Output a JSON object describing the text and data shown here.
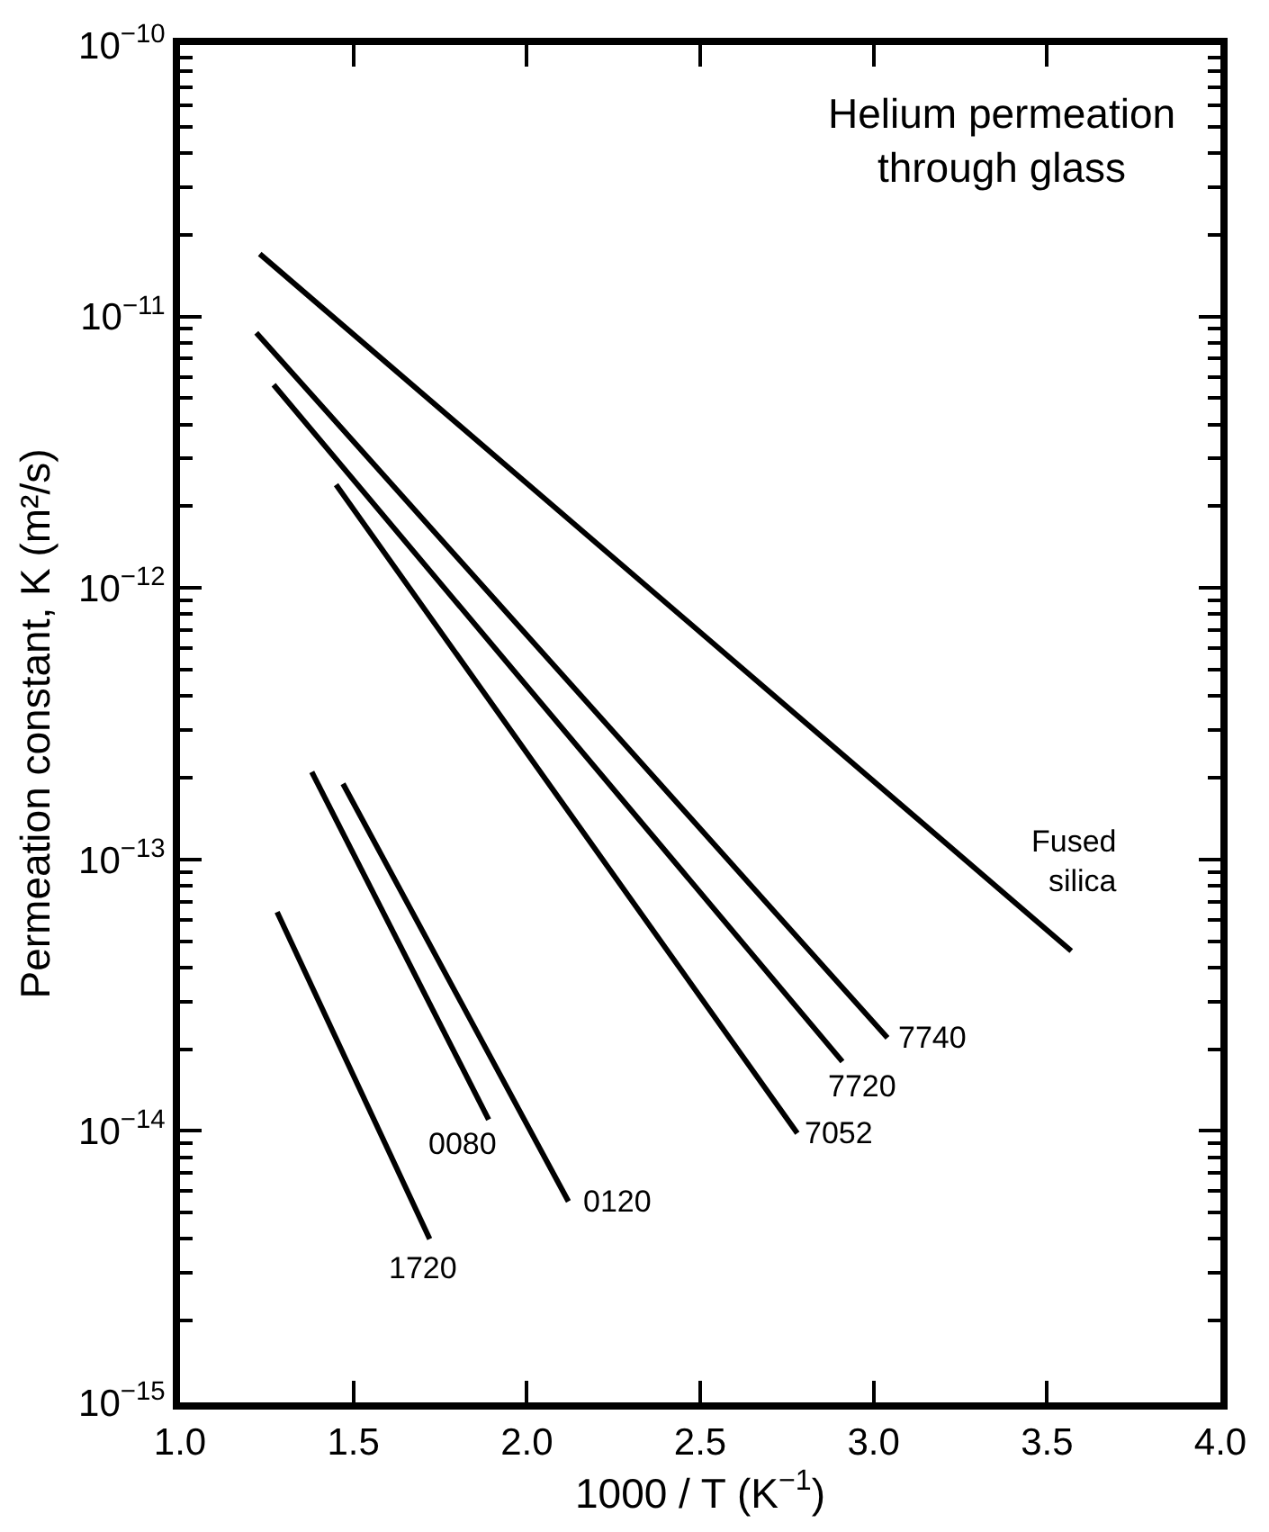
{
  "chart_data": {
    "type": "line",
    "title": "Helium permeation through glass",
    "xlabel": "1000 / T (K$^{−1}$)",
    "ylabel": "Permeation constant, K (m²/s)",
    "series": [
      {
        "name": "Fused silica",
        "color": "#000000",
        "x": [
          1.23,
          3.57
        ],
        "values": [
          1.7e-11,
          4.6e-14
        ]
      },
      {
        "name": "7740",
        "color": "#000000",
        "x": [
          1.22,
          3.04
        ],
        "values": [
          8.7e-12,
          2.2e-14
        ]
      },
      {
        "name": "7720",
        "color": "#000000",
        "x": [
          1.27,
          2.91
        ],
        "values": [
          5.6e-12,
          1.8e-14
        ]
      },
      {
        "name": "7052",
        "color": "#000000",
        "x": [
          1.45,
          2.78
        ],
        "values": [
          2.4e-12,
          9.8e-15
        ]
      },
      {
        "name": "0080",
        "color": "#000000",
        "x": [
          1.38,
          1.89
        ],
        "values": [
          2.1e-13,
          1.1e-14
        ]
      },
      {
        "name": "0120",
        "color": "#000000",
        "x": [
          1.47,
          2.12
        ],
        "values": [
          1.9e-13,
          5.5e-15
        ]
      },
      {
        "name": "1720",
        "color": "#000000",
        "x": [
          1.28,
          1.72
        ],
        "values": [
          6.4e-14,
          4e-15
        ]
      }
    ],
    "log": "y",
    "xlim": [
      1.0,
      4.0
    ],
    "ylim": [
      1e-15,
      1e-10
    ],
    "xticks": [
      {
        "value": 1.0,
        "label": "1.0"
      },
      {
        "value": 1.5,
        "label": "1.5"
      },
      {
        "value": 2.0,
        "label": "2.0"
      },
      {
        "value": 2.5,
        "label": "2.5"
      },
      {
        "value": 3.0,
        "label": "3.0"
      },
      {
        "value": 3.5,
        "label": "3.5"
      },
      {
        "value": 4.0,
        "label": "4.0"
      }
    ],
    "yticks": [
      {
        "value": 1e-15,
        "label": "10$^{−15}$"
      },
      {
        "value": 1e-14,
        "label": "10$^{−14}$"
      },
      {
        "value": 1e-13,
        "label": "10$^{−13}$"
      },
      {
        "value": 1e-12,
        "label": "10$^{−12}$"
      },
      {
        "value": 1e-11,
        "label": "10$^{−11}$"
      },
      {
        "value": 1e-10,
        "label": "10$^{−10}$"
      }
    ],
    "grid": false,
    "legend": false,
    "marker": "none",
    "line_style": "solid"
  }
}
